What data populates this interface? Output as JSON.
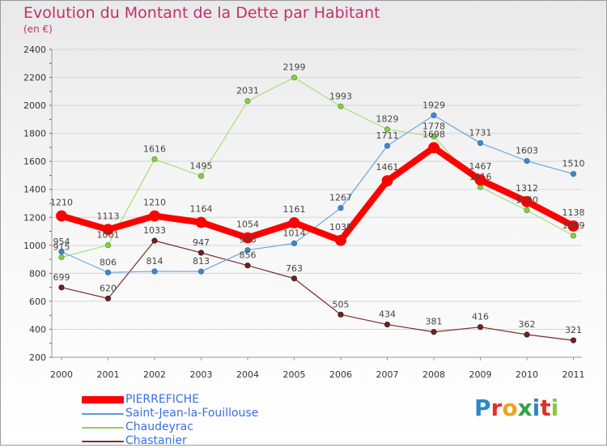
{
  "chart_data": {
    "type": "line",
    "title": "Evolution du Montant de la Dette par Habitant",
    "subtitle": "(en €)",
    "x": [
      "2000",
      "2001",
      "2002",
      "2003",
      "2004",
      "2005",
      "2006",
      "2007",
      "2008",
      "2009",
      "2010",
      "2011"
    ],
    "ylim": [
      200,
      2400
    ],
    "yticks": [
      "200",
      "400",
      "600",
      "800",
      "1000",
      "1200",
      "1400",
      "1600",
      "1800",
      "2000",
      "2200",
      "2400"
    ],
    "grid": "horizontal",
    "series": [
      {
        "name": "PIERREFICHE",
        "color": "#ff0000",
        "values": [
          1210,
          1113,
          1210,
          1164,
          1054,
          1161,
          1035,
          1461,
          1698,
          1467,
          1312,
          1138
        ]
      },
      {
        "name": "Saint-Jean-la-Fouillouse",
        "color": "#5b9bd5",
        "values": [
          954,
          806,
          814,
          813,
          966,
          1014,
          1267,
          1711,
          1929,
          1731,
          1603,
          1510
        ]
      },
      {
        "name": "Chaudeyrac",
        "color": "#8fd15a",
        "values": [
          915,
          1001,
          1616,
          1495,
          2031,
          2199,
          1993,
          1829,
          1778,
          1416,
          1250,
          1069
        ]
      },
      {
        "name": "Chastanier",
        "color": "#7b2b2b",
        "values": [
          699,
          620,
          1033,
          947,
          856,
          763,
          505,
          434,
          381,
          416,
          362,
          321
        ]
      }
    ],
    "data_labels": [
      [
        "1210",
        "1113",
        "1210",
        "1164",
        "1054",
        "1161",
        "1035",
        "1461",
        "1698",
        "1467",
        "1312",
        "1138"
      ],
      [
        "954",
        "806",
        "814",
        "813",
        "966",
        "1014",
        "1267",
        "1711",
        "1929",
        "1731",
        "1603",
        "1510"
      ],
      [
        "915",
        "1001",
        "1616",
        "1495",
        "2031",
        "2199",
        "1993",
        "1829",
        "1778",
        "1416",
        "1250",
        "1069"
      ],
      [
        "699",
        "620",
        "1033",
        "947",
        "856",
        "763",
        "505",
        "434",
        "381",
        "416",
        "362",
        "321"
      ]
    ],
    "legend": "bottom-left"
  },
  "logo": {
    "letters": [
      "P",
      "r",
      "o",
      "x",
      "i",
      "t",
      "i"
    ]
  }
}
